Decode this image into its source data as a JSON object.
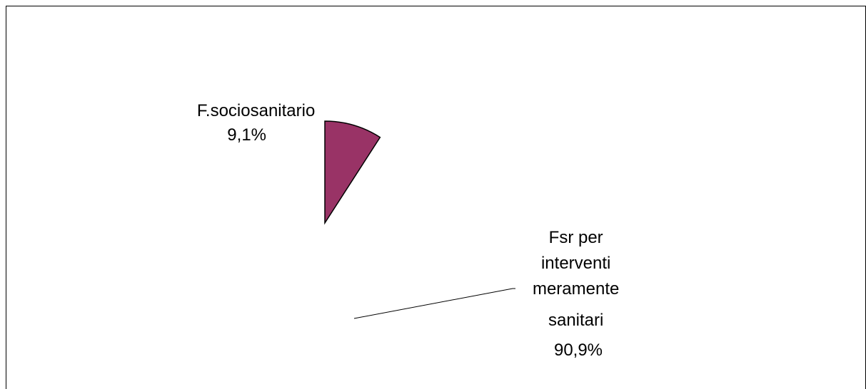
{
  "chart_data": {
    "type": "pie",
    "slices": [
      {
        "label_lines": [
          "F.sociosanitario",
          "9,1%"
        ],
        "value": 9.1,
        "color": "#993366",
        "visible": true
      },
      {
        "label_lines": [
          "Fsr per",
          "interventi",
          "meramente",
          "sanitari",
          "90,9%"
        ],
        "value": 90.9,
        "color": "#ffffff",
        "visible": false
      }
    ]
  }
}
